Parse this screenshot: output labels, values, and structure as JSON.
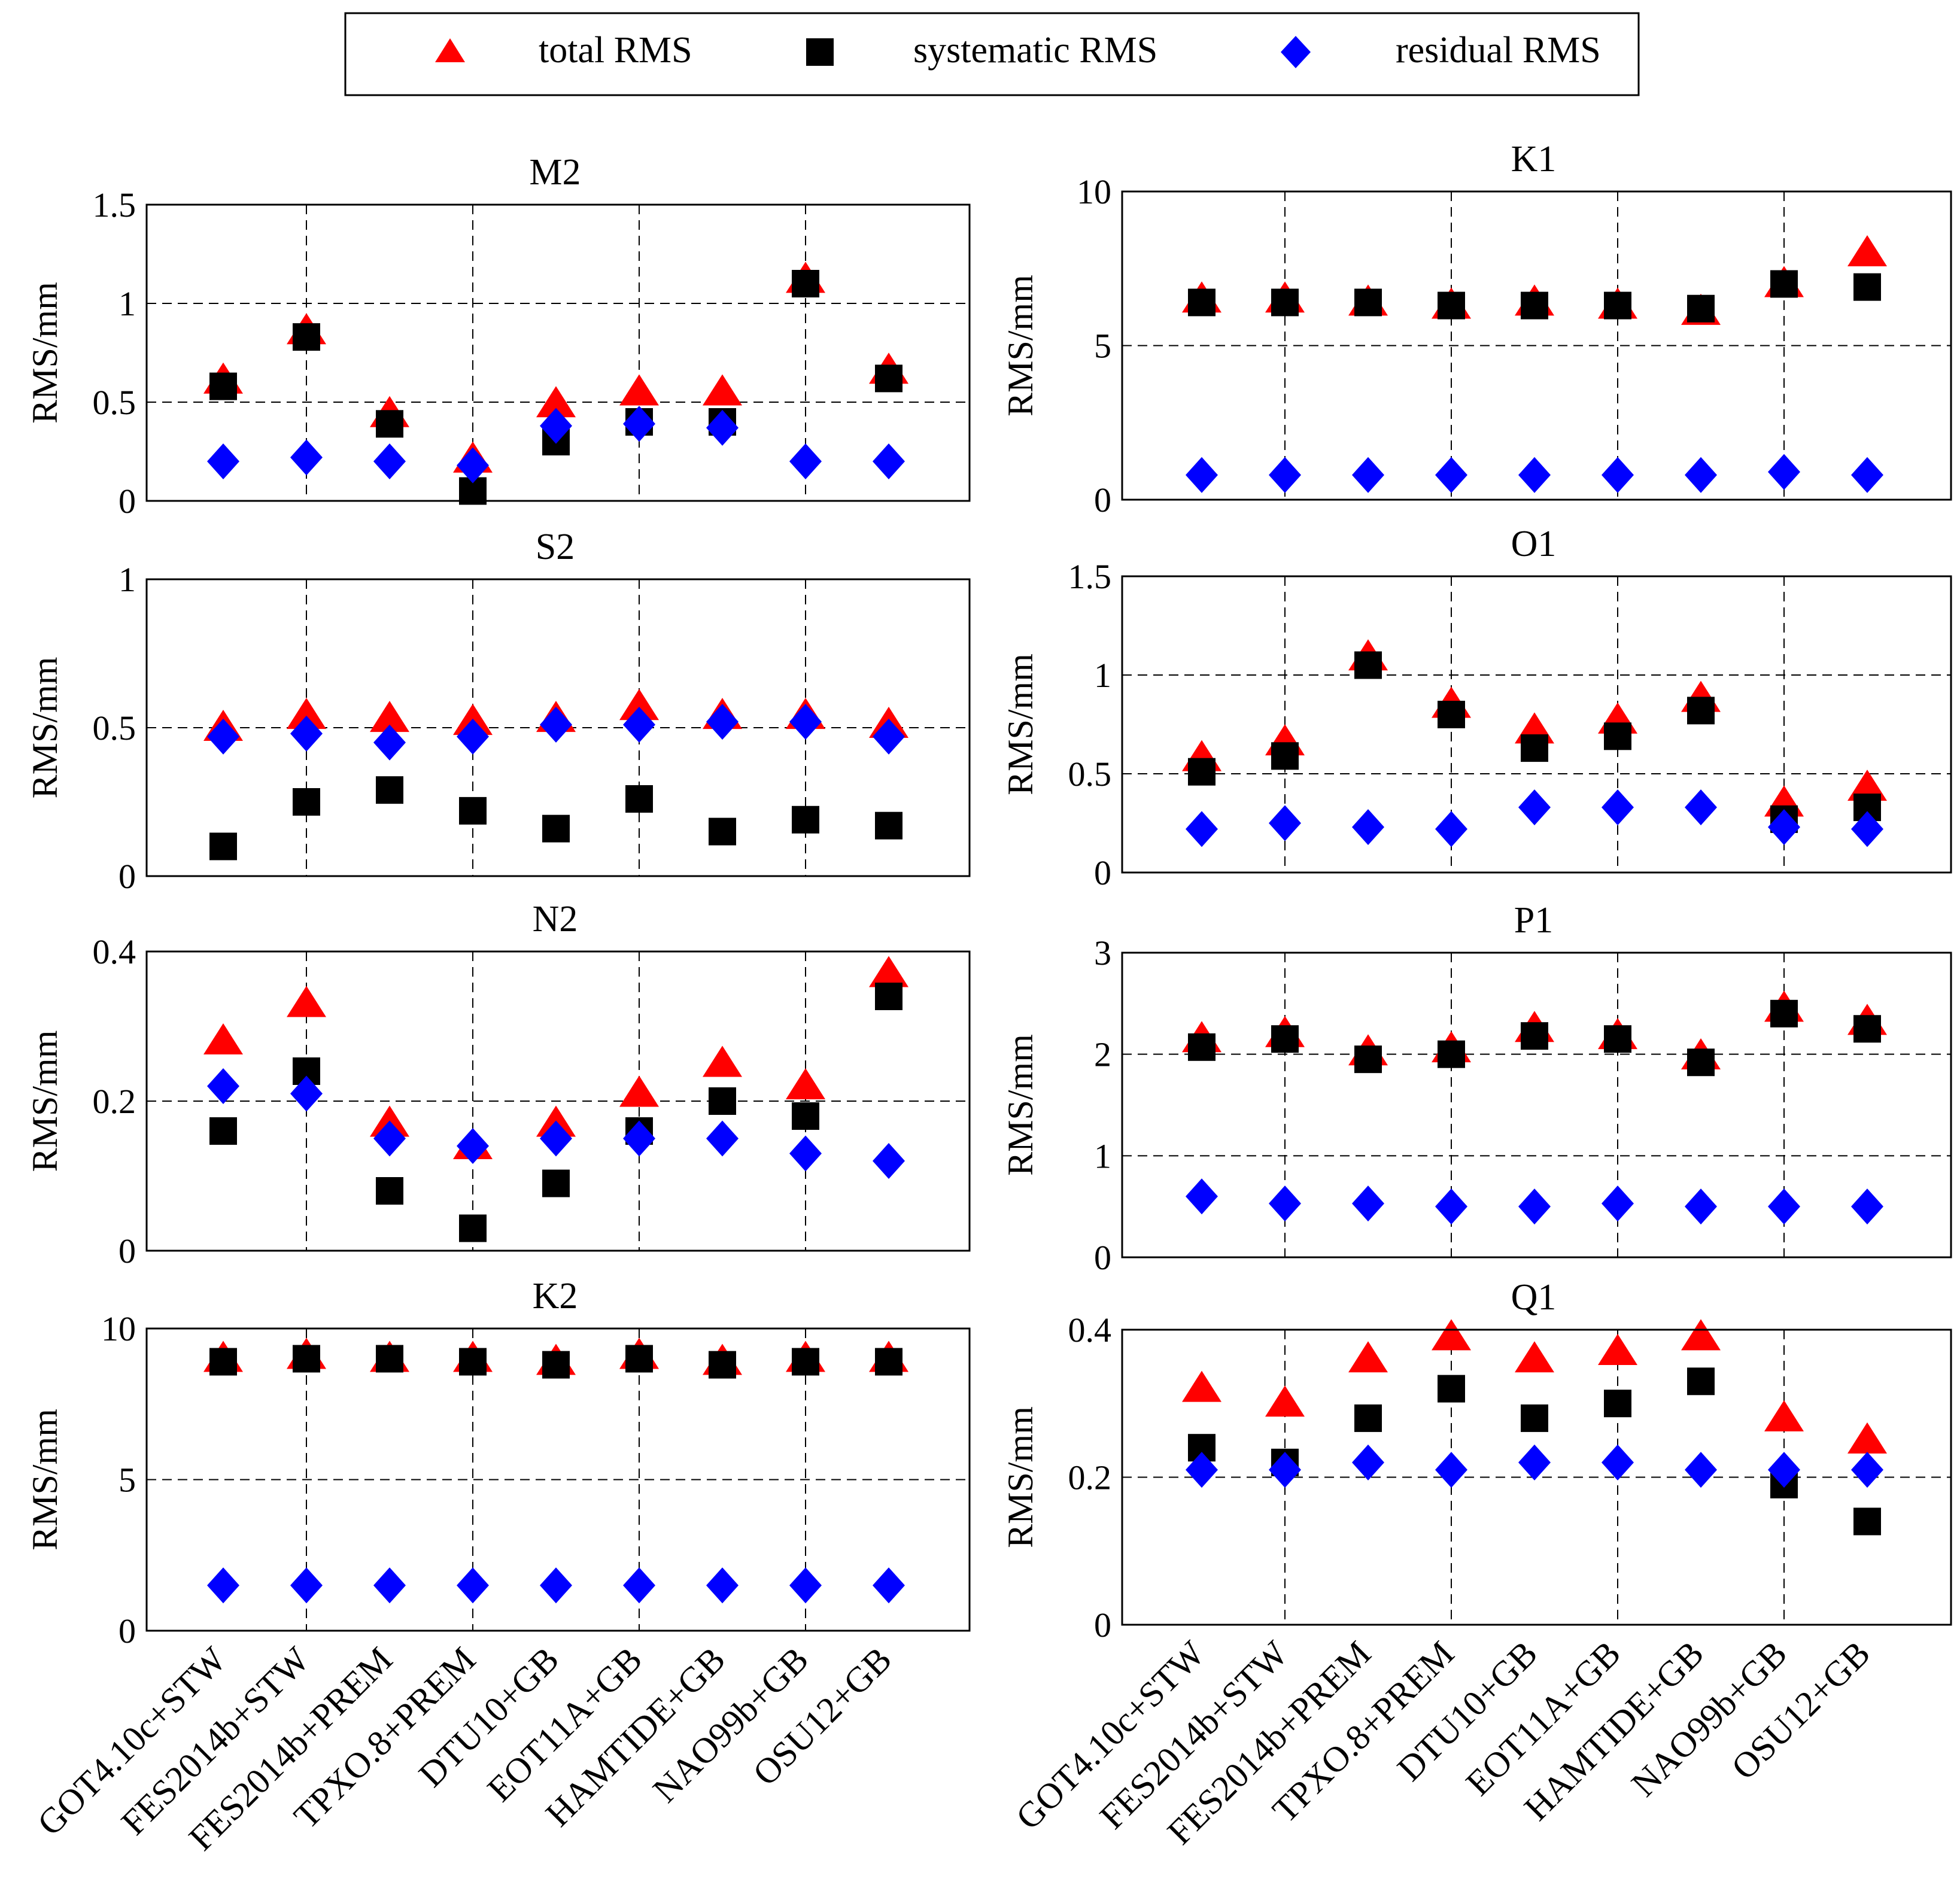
{
  "legend": {
    "items": [
      {
        "key": "total",
        "label": "total RMS",
        "color": "#FF0000",
        "marker": "triangle"
      },
      {
        "key": "systematic",
        "label": "systematic RMS",
        "color": "#000000",
        "marker": "square"
      },
      {
        "key": "residual",
        "label": "residual RMS",
        "color": "#0000FF",
        "marker": "diamond"
      }
    ]
  },
  "chart_data": [
    {
      "type": "scatter",
      "title": "M2",
      "ylabel": "RMS/mm",
      "ylim": [
        0,
        1.5
      ],
      "yticks": [
        0,
        0.5,
        1,
        1.5
      ],
      "ytick_labels": [
        "0",
        "0.5",
        "1",
        "1.5"
      ],
      "categories": [
        "GOT4.10c+STW",
        "FES2014b+STW",
        "FES2014b+PREM",
        "TPXO.8+PREM",
        "DTU10+GB",
        "EOT11A+GB",
        "HAMTIDE+GB",
        "NAO99b+GB",
        "OSU12+GB"
      ],
      "series": [
        {
          "name": "total RMS",
          "values": [
            0.61,
            0.86,
            0.44,
            0.21,
            0.49,
            0.55,
            0.55,
            1.12,
            0.66
          ]
        },
        {
          "name": "systematic RMS",
          "values": [
            0.58,
            0.83,
            0.39,
            0.05,
            0.3,
            0.4,
            0.4,
            1.1,
            0.62
          ]
        },
        {
          "name": "residual RMS",
          "values": [
            0.2,
            0.22,
            0.2,
            0.18,
            0.38,
            0.39,
            0.37,
            0.2,
            0.2
          ]
        }
      ]
    },
    {
      "type": "scatter",
      "title": "K1",
      "ylabel": "RMS/mm",
      "ylim": [
        0,
        10
      ],
      "yticks": [
        0,
        5,
        10
      ],
      "ytick_labels": [
        "0",
        "5",
        "10"
      ],
      "categories": [
        "GOT4.10c+STW",
        "FES2014b+STW",
        "FES2014b+PREM",
        "TPXO.8+PREM",
        "DTU10+GB",
        "EOT11A+GB",
        "HAMTIDE+GB",
        "NAO99b+GB",
        "OSU12+GB"
      ],
      "series": [
        {
          "name": "total RMS",
          "values": [
            6.5,
            6.5,
            6.4,
            6.3,
            6.4,
            6.3,
            6.1,
            7.0,
            8.0
          ]
        },
        {
          "name": "systematic RMS",
          "values": [
            6.4,
            6.4,
            6.4,
            6.3,
            6.3,
            6.3,
            6.2,
            7.0,
            6.9
          ]
        },
        {
          "name": "residual RMS",
          "values": [
            0.8,
            0.8,
            0.8,
            0.8,
            0.8,
            0.8,
            0.8,
            0.9,
            0.8
          ]
        }
      ]
    },
    {
      "type": "scatter",
      "title": "S2",
      "ylabel": "RMS/mm",
      "ylim": [
        0,
        1
      ],
      "yticks": [
        0,
        0.5,
        1
      ],
      "ytick_labels": [
        "0",
        "0.5",
        "1"
      ],
      "categories": [
        "GOT4.10c+STW",
        "FES2014b+STW",
        "FES2014b+PREM",
        "TPXO.8+PREM",
        "DTU10+GB",
        "EOT11A+GB",
        "HAMTIDE+GB",
        "NAO99b+GB",
        "OSU12+GB"
      ],
      "series": [
        {
          "name": "total RMS",
          "values": [
            0.5,
            0.54,
            0.53,
            0.52,
            0.53,
            0.57,
            0.54,
            0.54,
            0.51
          ]
        },
        {
          "name": "systematic RMS",
          "values": [
            0.1,
            0.25,
            0.29,
            0.22,
            0.16,
            0.26,
            0.15,
            0.19,
            0.17
          ]
        },
        {
          "name": "residual RMS",
          "values": [
            0.47,
            0.48,
            0.45,
            0.47,
            0.51,
            0.51,
            0.52,
            0.52,
            0.47
          ]
        }
      ]
    },
    {
      "type": "scatter",
      "title": "O1",
      "ylabel": "RMS/mm",
      "ylim": [
        0,
        1.5
      ],
      "yticks": [
        0,
        0.5,
        1,
        1.5
      ],
      "ytick_labels": [
        "0",
        "0.5",
        "1",
        "1.5"
      ],
      "categories": [
        "GOT4.10c+STW",
        "FES2014b+STW",
        "FES2014b+PREM",
        "TPXO.8+PREM",
        "DTU10+GB",
        "EOT11A+GB",
        "HAMTIDE+GB",
        "NAO99b+GB",
        "OSU12+GB"
      ],
      "series": [
        {
          "name": "total RMS",
          "values": [
            0.58,
            0.66,
            1.09,
            0.85,
            0.72,
            0.77,
            0.88,
            0.35,
            0.43
          ]
        },
        {
          "name": "systematic RMS",
          "values": [
            0.51,
            0.59,
            1.05,
            0.8,
            0.63,
            0.69,
            0.82,
            0.27,
            0.33
          ]
        },
        {
          "name": "residual RMS",
          "values": [
            0.22,
            0.25,
            0.23,
            0.22,
            0.33,
            0.33,
            0.33,
            0.23,
            0.22
          ]
        }
      ]
    },
    {
      "type": "scatter",
      "title": "N2",
      "ylabel": "RMS/mm",
      "ylim": [
        0,
        0.4
      ],
      "yticks": [
        0,
        0.2,
        0.4
      ],
      "ytick_labels": [
        "0",
        "0.2",
        "0.4"
      ],
      "categories": [
        "GOT4.10c+STW",
        "FES2014b+STW",
        "FES2014b+PREM",
        "TPXO.8+PREM",
        "DTU10+GB",
        "EOT11A+GB",
        "HAMTIDE+GB",
        "NAO99b+GB",
        "OSU12+GB"
      ],
      "series": [
        {
          "name": "total RMS",
          "values": [
            0.28,
            0.33,
            0.17,
            0.14,
            0.17,
            0.21,
            0.25,
            0.22,
            0.37
          ]
        },
        {
          "name": "systematic RMS",
          "values": [
            0.16,
            0.24,
            0.08,
            0.03,
            0.09,
            0.16,
            0.2,
            0.18,
            0.34
          ]
        },
        {
          "name": "residual RMS",
          "values": [
            0.22,
            0.21,
            0.15,
            0.14,
            0.15,
            0.15,
            0.15,
            0.13,
            0.12
          ]
        }
      ]
    },
    {
      "type": "scatter",
      "title": "P1",
      "ylabel": "RMS/mm",
      "ylim": [
        0,
        3
      ],
      "yticks": [
        0,
        1,
        2,
        3
      ],
      "ytick_labels": [
        "0",
        "1",
        "2",
        "3"
      ],
      "categories": [
        "GOT4.10c+STW",
        "FES2014b+STW",
        "FES2014b+PREM",
        "TPXO.8+PREM",
        "DTU10+GB",
        "EOT11A+GB",
        "HAMTIDE+GB",
        "NAO99b+GB",
        "OSU12+GB"
      ],
      "series": [
        {
          "name": "total RMS",
          "values": [
            2.15,
            2.2,
            2.02,
            2.05,
            2.25,
            2.18,
            1.98,
            2.45,
            2.32
          ]
        },
        {
          "name": "systematic RMS",
          "values": [
            2.07,
            2.15,
            1.95,
            2.0,
            2.18,
            2.15,
            1.92,
            2.4,
            2.25
          ]
        },
        {
          "name": "residual RMS",
          "values": [
            0.6,
            0.53,
            0.53,
            0.5,
            0.5,
            0.53,
            0.5,
            0.5,
            0.5
          ]
        }
      ]
    },
    {
      "type": "scatter",
      "title": "K2",
      "ylabel": "RMS/mm",
      "ylim": [
        0,
        10
      ],
      "yticks": [
        0,
        5,
        10
      ],
      "ytick_labels": [
        "0",
        "5",
        "10"
      ],
      "categories": [
        "GOT4.10c+STW",
        "FES2014b+STW",
        "FES2014b+PREM",
        "TPXO.8+PREM",
        "DTU10+GB",
        "EOT11A+GB",
        "HAMTIDE+GB",
        "NAO99b+GB",
        "OSU12+GB"
      ],
      "series": [
        {
          "name": "total RMS",
          "values": [
            9.0,
            9.1,
            9.0,
            9.0,
            8.9,
            9.1,
            8.9,
            9.0,
            9.0
          ]
        },
        {
          "name": "systematic RMS",
          "values": [
            8.9,
            9.0,
            9.0,
            8.9,
            8.8,
            9.0,
            8.8,
            8.9,
            8.9
          ]
        },
        {
          "name": "residual RMS",
          "values": [
            1.5,
            1.5,
            1.5,
            1.5,
            1.5,
            1.5,
            1.5,
            1.5,
            1.5
          ]
        }
      ]
    },
    {
      "type": "scatter",
      "title": "Q1",
      "ylabel": "RMS/mm",
      "ylim": [
        0,
        0.4
      ],
      "yticks": [
        0,
        0.2,
        0.4
      ],
      "ytick_labels": [
        "0",
        "0.2",
        "0.4"
      ],
      "categories": [
        "GOT4.10c+STW",
        "FES2014b+STW",
        "FES2014b+PREM",
        "TPXO.8+PREM",
        "DTU10+GB",
        "EOT11A+GB",
        "HAMTIDE+GB",
        "NAO99b+GB",
        "OSU12+GB"
      ],
      "series": [
        {
          "name": "total RMS",
          "values": [
            0.32,
            0.3,
            0.36,
            0.39,
            0.36,
            0.37,
            0.39,
            0.28,
            0.25
          ]
        },
        {
          "name": "systematic RMS",
          "values": [
            0.24,
            0.22,
            0.28,
            0.32,
            0.28,
            0.3,
            0.33,
            0.19,
            0.14
          ]
        },
        {
          "name": "residual RMS",
          "values": [
            0.21,
            0.21,
            0.22,
            0.21,
            0.22,
            0.22,
            0.21,
            0.21,
            0.21
          ]
        }
      ]
    }
  ]
}
